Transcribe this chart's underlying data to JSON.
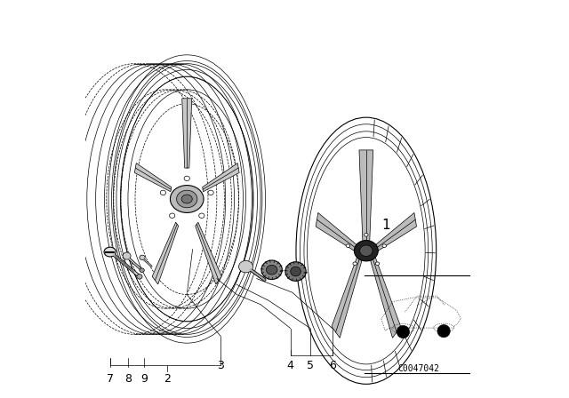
{
  "background_color": "#ffffff",
  "line_color": "#000000",
  "fig_width": 6.4,
  "fig_height": 4.48,
  "diagram_code": "C0047042",
  "text_color": "#000000",
  "label_fontsize": 9,
  "code_fontsize": 7
}
